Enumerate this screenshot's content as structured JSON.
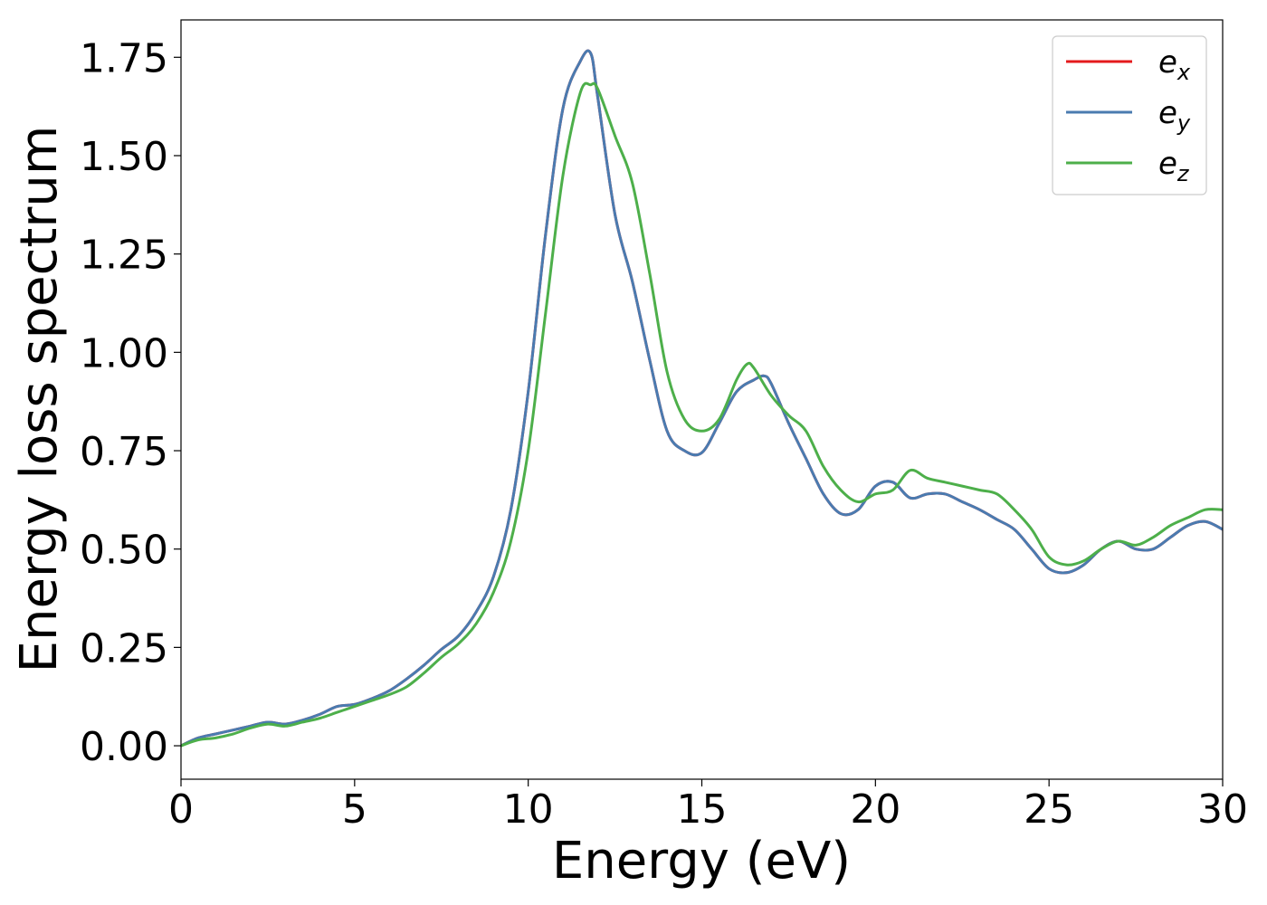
{
  "chart_data": {
    "type": "line",
    "xlabel": "Energy (eV)",
    "ylabel": "Energy loss spectrum",
    "xlim": [
      0,
      30
    ],
    "ylim": [
      -0.085,
      1.845
    ],
    "xticks": [
      0,
      5,
      10,
      15,
      20,
      25,
      30
    ],
    "xtick_labels": [
      "0",
      "5",
      "10",
      "15",
      "20",
      "25",
      "30"
    ],
    "yticks": [
      0.0,
      0.25,
      0.5,
      0.75,
      1.0,
      1.25,
      1.5,
      1.75
    ],
    "ytick_labels": [
      "0.00",
      "0.25",
      "0.50",
      "0.75",
      "1.00",
      "1.25",
      "1.50",
      "1.75"
    ],
    "grid": false,
    "legend_position": "top-right",
    "series": [
      {
        "name": "e_x",
        "label_base": "e",
        "label_sub": "x",
        "color": "#e41a1c",
        "x": [
          0,
          0.5,
          1,
          1.5,
          2,
          2.5,
          3,
          3.5,
          4,
          4.5,
          5,
          5.5,
          6,
          6.5,
          7,
          7.5,
          8,
          8.5,
          9,
          9.5,
          10,
          10.5,
          11,
          11.5,
          11.8,
          12,
          12.5,
          13,
          13.5,
          14,
          14.5,
          15,
          15.5,
          16,
          16.5,
          16.8,
          17,
          17.5,
          18,
          18.5,
          19,
          19.5,
          20,
          20.5,
          21,
          21.5,
          22,
          22.5,
          23,
          23.5,
          24,
          24.5,
          25,
          25.5,
          26,
          26.5,
          27,
          27.5,
          28,
          28.5,
          29,
          29.5,
          30
        ],
        "values": [
          0.0,
          0.02,
          0.03,
          0.04,
          0.05,
          0.06,
          0.055,
          0.065,
          0.08,
          0.1,
          0.105,
          0.12,
          0.14,
          0.17,
          0.205,
          0.245,
          0.28,
          0.34,
          0.43,
          0.6,
          0.9,
          1.3,
          1.62,
          1.74,
          1.76,
          1.65,
          1.35,
          1.18,
          0.98,
          0.8,
          0.75,
          0.745,
          0.82,
          0.9,
          0.93,
          0.94,
          0.92,
          0.82,
          0.73,
          0.64,
          0.59,
          0.6,
          0.66,
          0.67,
          0.63,
          0.64,
          0.64,
          0.62,
          0.6,
          0.575,
          0.55,
          0.5,
          0.45,
          0.44,
          0.46,
          0.5,
          0.52,
          0.5,
          0.5,
          0.53,
          0.56,
          0.57,
          0.55
        ]
      },
      {
        "name": "e_y",
        "label_base": "e",
        "label_sub": "y",
        "color": "#4a7bb0",
        "x": [
          0,
          0.5,
          1,
          1.5,
          2,
          2.5,
          3,
          3.5,
          4,
          4.5,
          5,
          5.5,
          6,
          6.5,
          7,
          7.5,
          8,
          8.5,
          9,
          9.5,
          10,
          10.5,
          11,
          11.5,
          11.8,
          12,
          12.5,
          13,
          13.5,
          14,
          14.5,
          15,
          15.5,
          16,
          16.5,
          16.8,
          17,
          17.5,
          18,
          18.5,
          19,
          19.5,
          20,
          20.5,
          21,
          21.5,
          22,
          22.5,
          23,
          23.5,
          24,
          24.5,
          25,
          25.5,
          26,
          26.5,
          27,
          27.5,
          28,
          28.5,
          29,
          29.5,
          30
        ],
        "values": [
          0.0,
          0.02,
          0.03,
          0.04,
          0.05,
          0.06,
          0.055,
          0.065,
          0.08,
          0.1,
          0.105,
          0.12,
          0.14,
          0.17,
          0.205,
          0.245,
          0.28,
          0.34,
          0.43,
          0.6,
          0.9,
          1.3,
          1.62,
          1.74,
          1.76,
          1.65,
          1.35,
          1.18,
          0.98,
          0.8,
          0.75,
          0.745,
          0.82,
          0.9,
          0.93,
          0.94,
          0.92,
          0.82,
          0.73,
          0.64,
          0.59,
          0.6,
          0.66,
          0.67,
          0.63,
          0.64,
          0.64,
          0.62,
          0.6,
          0.575,
          0.55,
          0.5,
          0.45,
          0.44,
          0.46,
          0.5,
          0.52,
          0.5,
          0.5,
          0.53,
          0.56,
          0.57,
          0.55
        ]
      },
      {
        "name": "e_z",
        "label_base": "e",
        "label_sub": "z",
        "color": "#4daf4a",
        "x": [
          0,
          0.5,
          1,
          1.5,
          2,
          2.5,
          3,
          3.5,
          4,
          4.5,
          5,
          5.5,
          6,
          6.5,
          7,
          7.5,
          8,
          8.5,
          9,
          9.5,
          10,
          10.5,
          11,
          11.5,
          11.8,
          12,
          12.5,
          13,
          13.5,
          14,
          14.5,
          15,
          15.5,
          16,
          16.3,
          16.5,
          17,
          17.5,
          18,
          18.5,
          19,
          19.5,
          20,
          20.5,
          21,
          21.5,
          22,
          22.5,
          23,
          23.5,
          24,
          24.5,
          25,
          25.5,
          26,
          26.5,
          27,
          27.5,
          28,
          28.5,
          29,
          29.5,
          30
        ],
        "values": [
          0.0,
          0.015,
          0.02,
          0.03,
          0.045,
          0.055,
          0.05,
          0.06,
          0.07,
          0.085,
          0.1,
          0.115,
          0.13,
          0.15,
          0.185,
          0.225,
          0.26,
          0.31,
          0.39,
          0.52,
          0.75,
          1.1,
          1.45,
          1.66,
          1.68,
          1.67,
          1.55,
          1.43,
          1.2,
          0.95,
          0.83,
          0.8,
          0.83,
          0.93,
          0.97,
          0.96,
          0.89,
          0.84,
          0.8,
          0.71,
          0.65,
          0.62,
          0.64,
          0.65,
          0.7,
          0.68,
          0.67,
          0.66,
          0.65,
          0.64,
          0.6,
          0.55,
          0.48,
          0.46,
          0.47,
          0.5,
          0.52,
          0.51,
          0.53,
          0.56,
          0.58,
          0.6,
          0.6
        ]
      }
    ]
  }
}
